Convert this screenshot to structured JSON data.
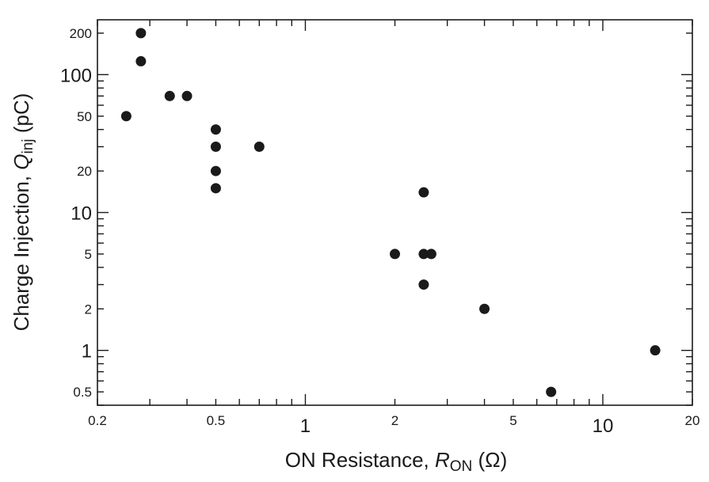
{
  "chart_data": {
    "type": "scatter",
    "x_scale": "log",
    "y_scale": "log",
    "xlim": [
      0.2,
      20
    ],
    "ylim": [
      0.4,
      250
    ],
    "xlabel": {
      "prefix": "ON Resistance, ",
      "symbol": "R",
      "subscript": "ON",
      "unit": "(Ω)"
    },
    "ylabel": {
      "prefix": "Charge Injection, ",
      "symbol": "Q",
      "subscript": "inj",
      "unit": "(pC)"
    },
    "x_ticks": [
      {
        "value": 0.2,
        "label": "0.2",
        "major": false
      },
      {
        "value": 0.5,
        "label": "0.5",
        "major": false
      },
      {
        "value": 1,
        "label": "1",
        "major": true
      },
      {
        "value": 2,
        "label": "2",
        "major": false
      },
      {
        "value": 5,
        "label": "5",
        "major": false
      },
      {
        "value": 10,
        "label": "10",
        "major": true
      },
      {
        "value": 20,
        "label": "20",
        "major": false
      }
    ],
    "y_ticks": [
      {
        "value": 0.5,
        "label": "0.5",
        "major": false
      },
      {
        "value": 1,
        "label": "1",
        "major": true
      },
      {
        "value": 2,
        "label": "2",
        "major": false
      },
      {
        "value": 5,
        "label": "5",
        "major": false
      },
      {
        "value": 10,
        "label": "10",
        "major": true
      },
      {
        "value": 20,
        "label": "20",
        "major": false
      },
      {
        "value": 50,
        "label": "50",
        "major": false
      },
      {
        "value": 100,
        "label": "100",
        "major": true
      },
      {
        "value": 200,
        "label": "200",
        "major": false
      }
    ],
    "grid": false,
    "marker_color": "#1a1a1a",
    "points": [
      {
        "x": 0.25,
        "y": 50
      },
      {
        "x": 0.28,
        "y": 200
      },
      {
        "x": 0.28,
        "y": 125
      },
      {
        "x": 0.35,
        "y": 70
      },
      {
        "x": 0.4,
        "y": 70
      },
      {
        "x": 0.5,
        "y": 40
      },
      {
        "x": 0.5,
        "y": 30
      },
      {
        "x": 0.5,
        "y": 20
      },
      {
        "x": 0.5,
        "y": 15
      },
      {
        "x": 0.7,
        "y": 30
      },
      {
        "x": 2.0,
        "y": 5
      },
      {
        "x": 2.5,
        "y": 14
      },
      {
        "x": 2.5,
        "y": 5
      },
      {
        "x": 2.65,
        "y": 5
      },
      {
        "x": 2.5,
        "y": 3
      },
      {
        "x": 4.0,
        "y": 2
      },
      {
        "x": 6.7,
        "y": 0.5
      },
      {
        "x": 15,
        "y": 1
      }
    ]
  }
}
